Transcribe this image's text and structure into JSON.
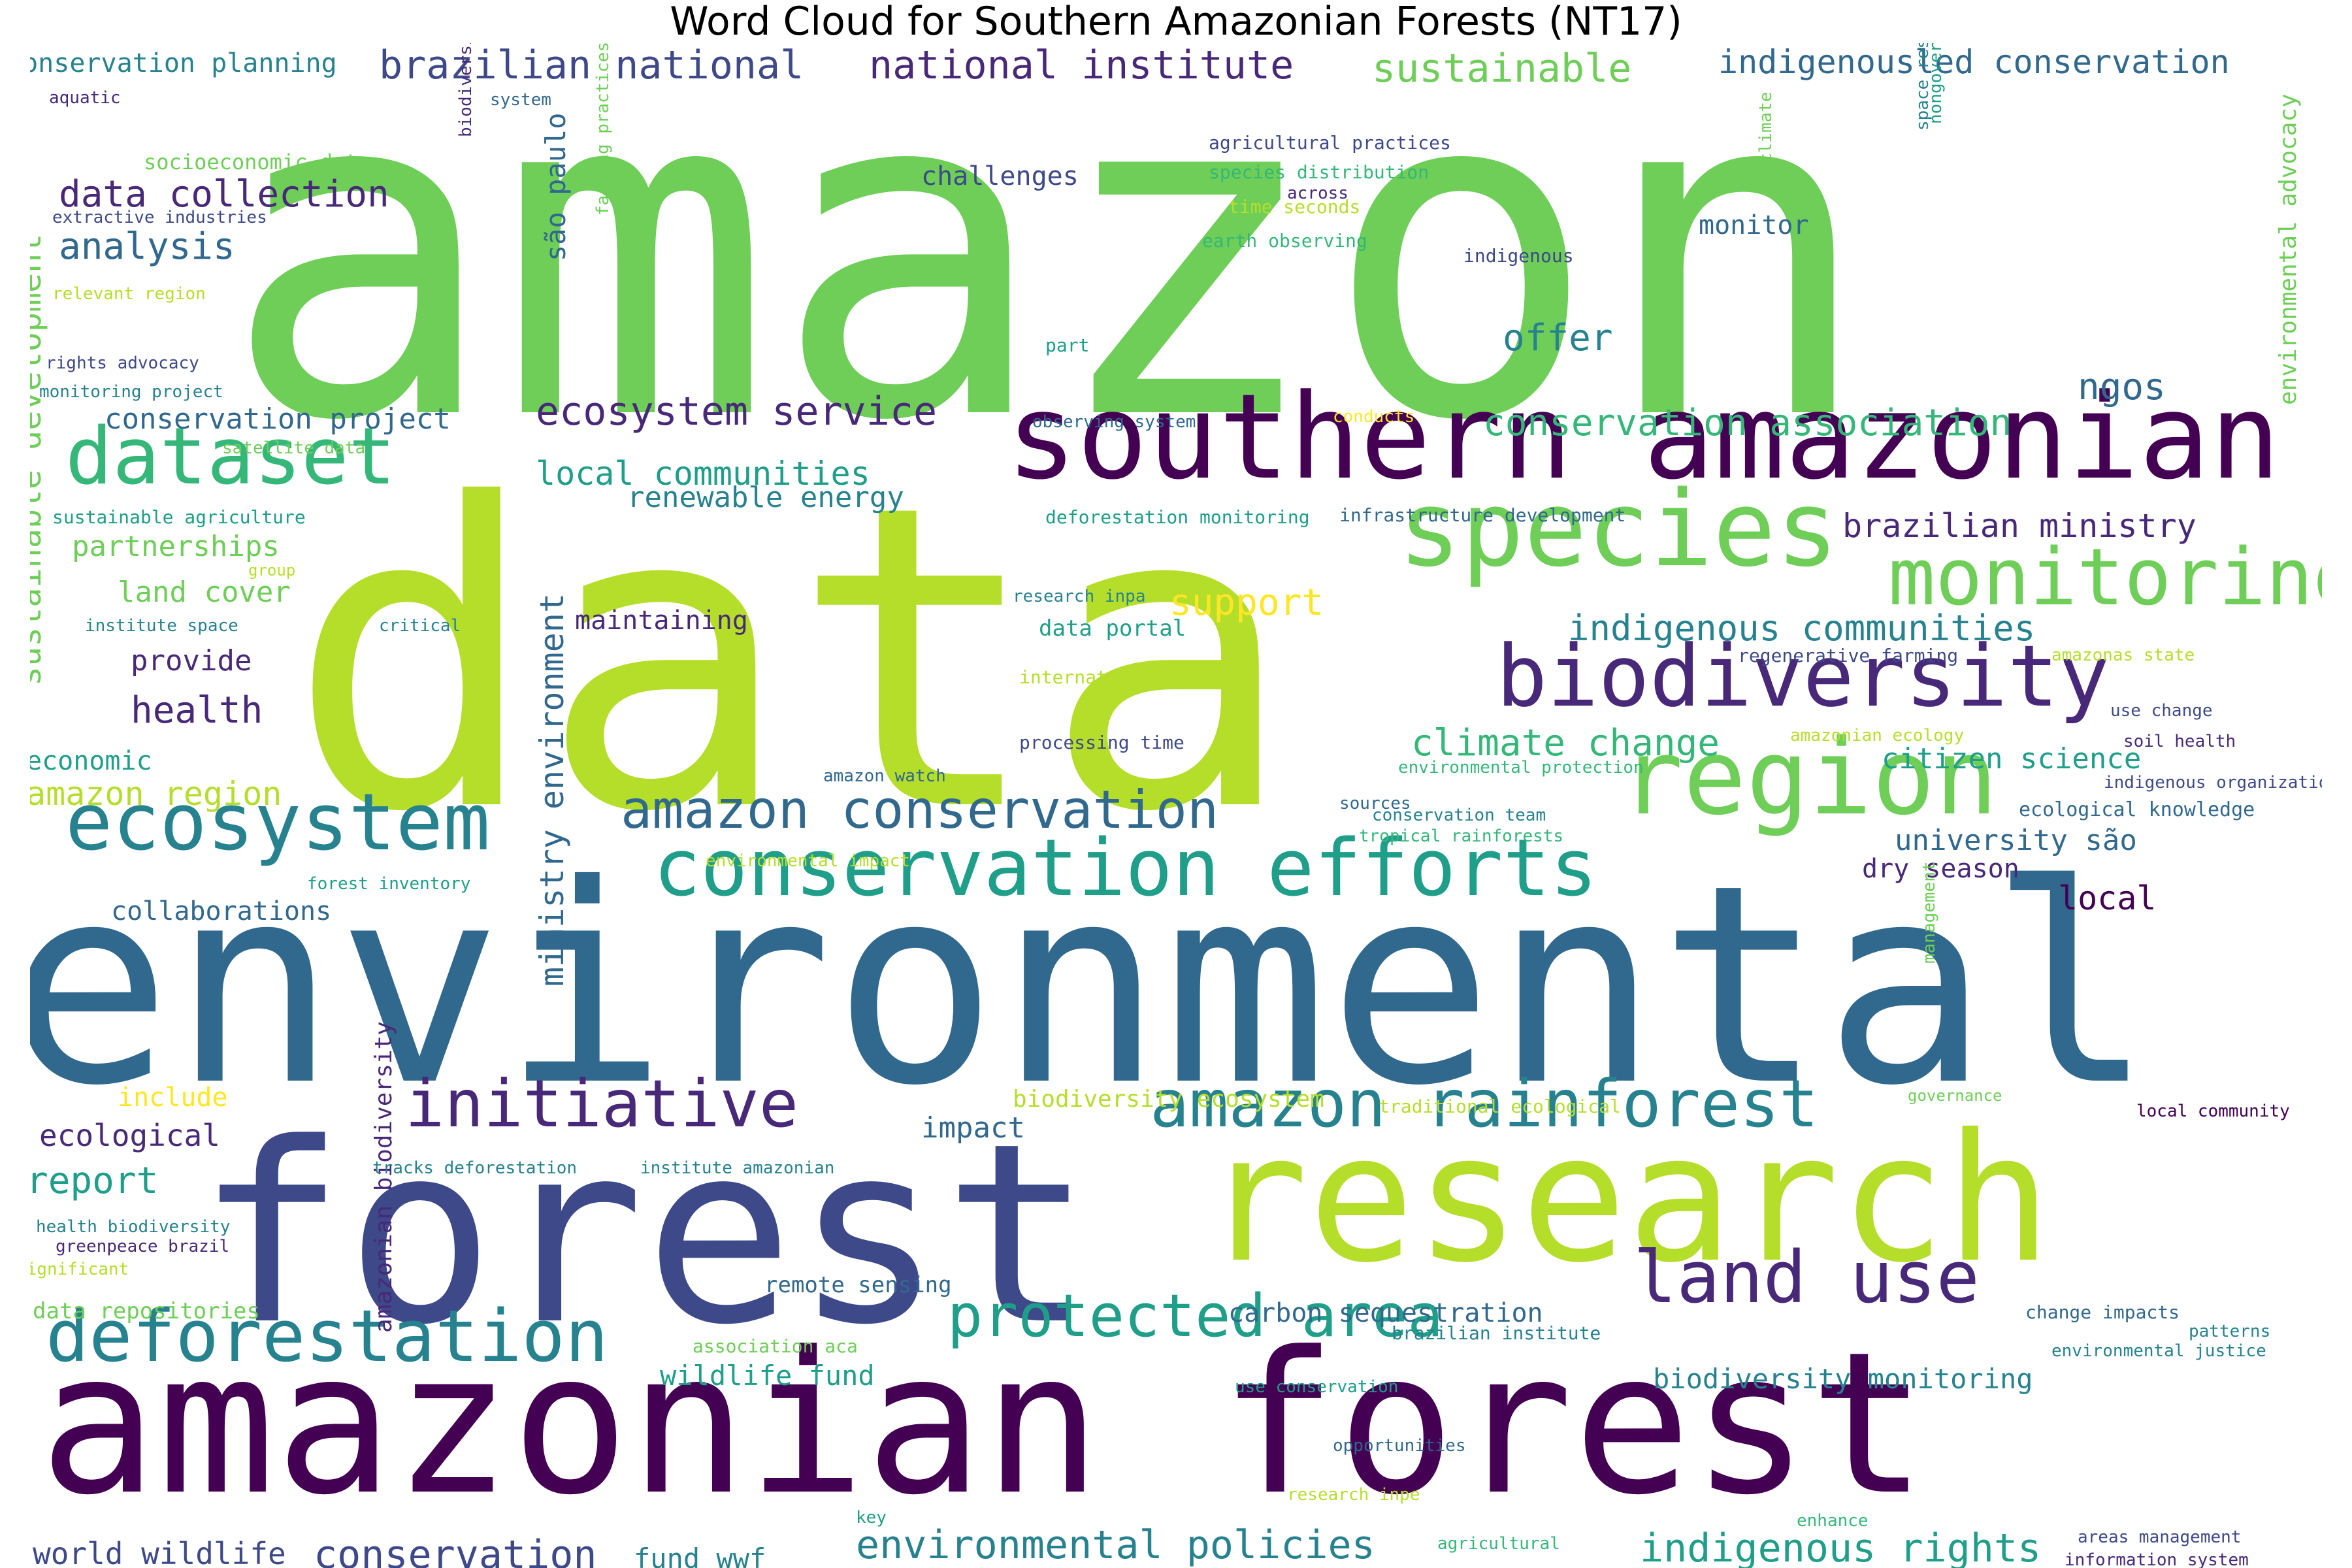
{
  "title": "Word Cloud for Southern Amazonian Forests (NT17)",
  "colors": {
    "c1": "#440154",
    "c2": "#482878",
    "c3": "#3e4989",
    "c4": "#31688e",
    "c5": "#26828e",
    "c6": "#1f9e89",
    "c7": "#35b779",
    "c8": "#6ece58",
    "c9": "#b5de2b",
    "c10": "#fde725"
  },
  "words": [
    "amazon",
    "data",
    "environmental",
    "forest",
    "amazonian forest",
    "research",
    "southern amazonian",
    "species",
    "region",
    "biodiversity",
    "monitoring",
    "dataset",
    "ecosystem",
    "conservation efforts",
    "initiative",
    "amazon rainforest",
    "deforestation",
    "land use",
    "protected area",
    "amazon conservation",
    "ecosystem service",
    "conservation planning",
    "brazilian national",
    "national institute",
    "sustainable",
    "indigenousled conservation",
    "sustainable development",
    "data collection",
    "analysis",
    "health",
    "conservation project",
    "local communities",
    "renewable energy",
    "conservation association",
    "brazilian ministry",
    "indigenous communities",
    "climate change",
    "citizen science",
    "university são",
    "dry season",
    "local",
    "ngos",
    "offer",
    "support",
    "challenges",
    "monitor",
    "são paulo",
    "ministry environment",
    "partnerships",
    "land cover",
    "provide",
    "economic",
    "amazon region",
    "collaborations",
    "maintaining",
    "data portal",
    "ecological knowledge",
    "environmental policies",
    "indigenous rights",
    "conservation",
    "world wildlife",
    "fund wwf",
    "wildlife fund",
    "biodiversity monitoring",
    "carbon sequestration",
    "remote sensing",
    "ecological",
    "report",
    "include",
    "impact",
    "data repositories",
    "amazonian biodiversity",
    "environmental advocacy",
    "socioeconomic data",
    "extractive industries",
    "relevant region",
    "rights advocacy",
    "monitoring project",
    "satellite data",
    "sustainable agriculture",
    "group",
    "institute space",
    "critical",
    "aquatic",
    "system",
    "agricultural practices",
    "species distribution",
    "across",
    "time seconds",
    "earth observing",
    "indigenous",
    "part",
    "observing system",
    "conducts",
    "deforestation monitoring",
    "infrastructure development",
    "research inpa",
    "international",
    "processing time",
    "amazon watch",
    "environmental impact",
    "forest inventory",
    "sources",
    "conservation team",
    "tropical rainforests",
    "environmental protection",
    "amazonian ecology",
    "regenerative farming",
    "amazonas state",
    "use change",
    "soil health",
    "indigenous organization",
    "biodiversity information",
    "farming practices",
    "nongovernmental organization",
    "climate",
    "space research",
    "biodiversity ecosystem",
    "traditional ecological",
    "governance",
    "management",
    "local community",
    "tracks deforestation",
    "institute amazonian",
    "health biodiversity",
    "greenpeace brazil",
    "significant",
    "association aca",
    "brazilian institute",
    "use conservation",
    "change impacts",
    "patterns",
    "environmental justice",
    "opportunities",
    "research inpe",
    "key",
    "enhance",
    "agricultural",
    "areas management",
    "information system"
  ]
}
